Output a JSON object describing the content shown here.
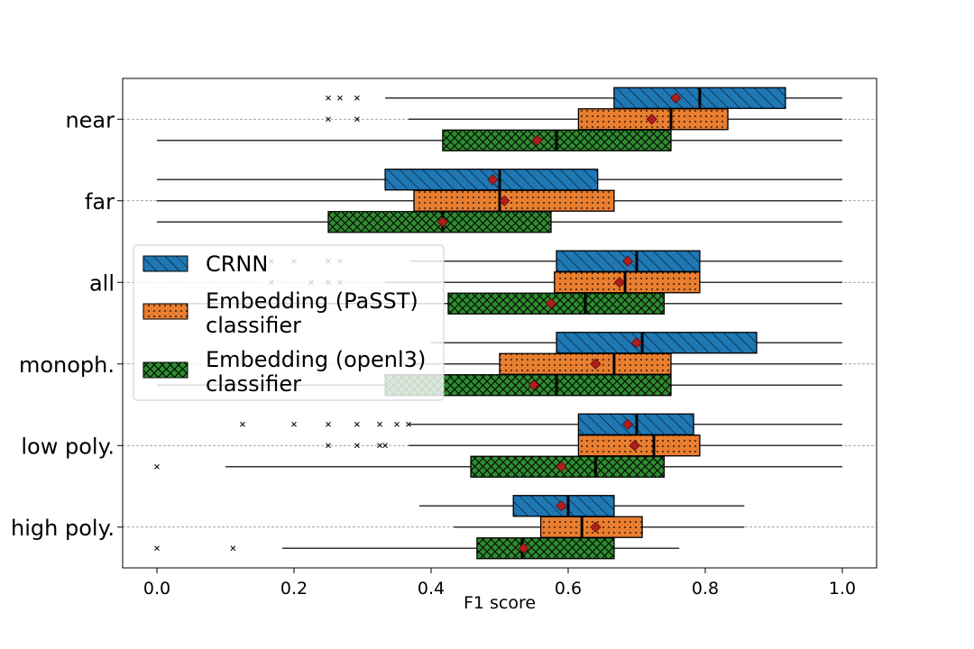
{
  "chart_data": {
    "type": "box",
    "orientation": "horizontal",
    "title": "",
    "xlabel": "F1 score",
    "ylabel": "",
    "xlim": [
      -0.05,
      1.05
    ],
    "x_ticks": [
      "0.0",
      "0.2",
      "0.4",
      "0.6",
      "0.8",
      "1.0"
    ],
    "x_tick_values": [
      0.0,
      0.2,
      0.4,
      0.6,
      0.8,
      1.0
    ],
    "grid": "horizontal dashed at category centers",
    "legend_position": "center-left",
    "categories": [
      "near",
      "far",
      "all",
      "monoph.",
      "low poly.",
      "high poly."
    ],
    "series": [
      {
        "name": "CRNN",
        "color": "#1f77b4",
        "hatch": "diagonal",
        "boxes": [
          {
            "whisker_low": 0.333,
            "q1": 0.667,
            "median": 0.792,
            "q3": 0.917,
            "whisker_high": 1.0,
            "mean": 0.757,
            "outliers": [
              0.25,
              0.267,
              0.292
            ]
          },
          {
            "whisker_low": 0.0,
            "q1": 0.333,
            "median": 0.5,
            "q3": 0.643,
            "whisker_high": 1.0,
            "mean": 0.49,
            "outliers": []
          },
          {
            "whisker_low": 0.37,
            "q1": 0.583,
            "median": 0.7,
            "q3": 0.792,
            "whisker_high": 1.0,
            "mean": 0.687,
            "outliers": [
              0.167,
              0.2,
              0.25,
              0.267
            ]
          },
          {
            "whisker_low": 0.4,
            "q1": 0.583,
            "median": 0.708,
            "q3": 0.875,
            "whisker_high": 1.0,
            "mean": 0.7,
            "outliers": []
          },
          {
            "whisker_low": 0.367,
            "q1": 0.615,
            "median": 0.7,
            "q3": 0.783,
            "whisker_high": 1.0,
            "mean": 0.687,
            "outliers": [
              0.125,
              0.2,
              0.25,
              0.292,
              0.325,
              0.35,
              0.367
            ]
          },
          {
            "whisker_low": 0.383,
            "q1": 0.52,
            "median": 0.6,
            "q3": 0.667,
            "whisker_high": 0.857,
            "mean": 0.59,
            "outliers": []
          }
        ]
      },
      {
        "name": "Embedding (PaSST) classifier",
        "color": "#e87e2f",
        "hatch": "dots",
        "boxes": [
          {
            "whisker_low": 0.367,
            "q1": 0.615,
            "median": 0.75,
            "q3": 0.833,
            "whisker_high": 1.0,
            "mean": 0.722,
            "outliers": [
              0.25,
              0.292
            ]
          },
          {
            "whisker_low": 0.0,
            "q1": 0.375,
            "median": 0.5,
            "q3": 0.667,
            "whisker_high": 1.0,
            "mean": 0.507,
            "outliers": []
          },
          {
            "whisker_low": 0.333,
            "q1": 0.58,
            "median": 0.683,
            "q3": 0.792,
            "whisker_high": 1.0,
            "mean": 0.675,
            "outliers": [
              0.167,
              0.225,
              0.25,
              0.267
            ]
          },
          {
            "whisker_low": 0.375,
            "q1": 0.5,
            "median": 0.667,
            "q3": 0.75,
            "whisker_high": 1.0,
            "mean": 0.64,
            "outliers": []
          },
          {
            "whisker_low": 0.367,
            "q1": 0.615,
            "median": 0.725,
            "q3": 0.792,
            "whisker_high": 1.0,
            "mean": 0.697,
            "outliers": [
              0.25,
              0.292,
              0.325,
              0.333
            ]
          },
          {
            "whisker_low": 0.433,
            "q1": 0.56,
            "median": 0.62,
            "q3": 0.708,
            "whisker_high": 0.857,
            "mean": 0.64,
            "outliers": []
          }
        ]
      },
      {
        "name": "Embedding (openl3) classifier",
        "color": "#2f8c2f",
        "hatch": "crosshatch",
        "boxes": [
          {
            "whisker_low": 0.0,
            "q1": 0.417,
            "median": 0.583,
            "q3": 0.75,
            "whisker_high": 1.0,
            "mean": 0.555,
            "outliers": []
          },
          {
            "whisker_low": 0.0,
            "q1": 0.25,
            "median": 0.417,
            "q3": 0.575,
            "whisker_high": 1.0,
            "mean": 0.417,
            "outliers": []
          },
          {
            "whisker_low": 0.0,
            "q1": 0.425,
            "median": 0.625,
            "q3": 0.74,
            "whisker_high": 1.0,
            "mean": 0.575,
            "outliers": []
          },
          {
            "whisker_low": 0.0,
            "q1": 0.333,
            "median": 0.583,
            "q3": 0.75,
            "whisker_high": 1.0,
            "mean": 0.55,
            "outliers": []
          },
          {
            "whisker_low": 0.1,
            "q1": 0.458,
            "median": 0.64,
            "q3": 0.74,
            "whisker_high": 1.0,
            "mean": 0.59,
            "outliers": [
              0.0
            ]
          },
          {
            "whisker_low": 0.183,
            "q1": 0.467,
            "median": 0.533,
            "q3": 0.667,
            "whisker_high": 0.762,
            "mean": 0.535,
            "outliers": [
              0.0,
              0.111
            ]
          }
        ]
      }
    ],
    "legend": [
      {
        "lines": [
          "CRNN"
        ]
      },
      {
        "lines": [
          "Embedding (PaSST)",
          "classifier"
        ]
      },
      {
        "lines": [
          "Embedding (openl3)",
          "classifier"
        ]
      }
    ]
  }
}
